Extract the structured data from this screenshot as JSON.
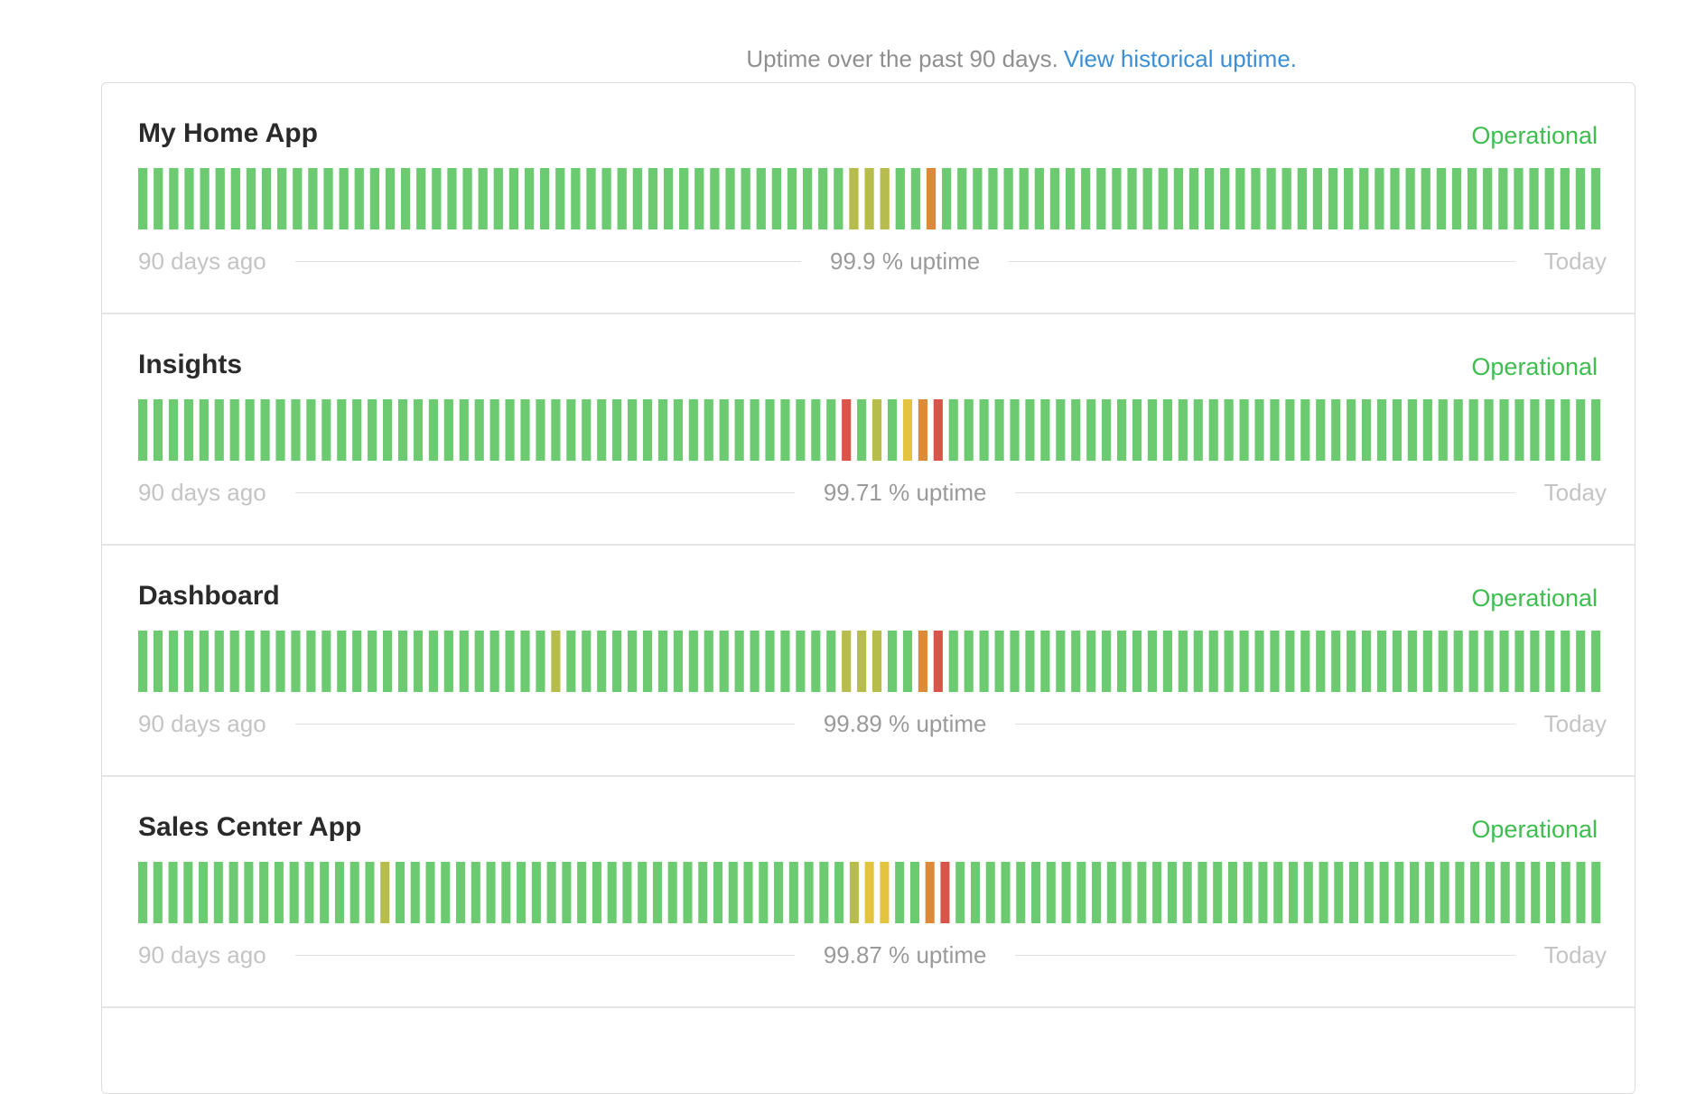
{
  "header": {
    "note": "Uptime over the past 90 days.",
    "link": "View historical uptime."
  },
  "colors": {
    "g": "#6ccb70",
    "y": "#b7bd4c",
    "Y": "#e4c43f",
    "o": "#dc8a3a",
    "r": "#d9554a"
  },
  "components": [
    {
      "name": "My Home App",
      "status": "Operational",
      "left_label": "90 days ago",
      "uptime": "99.9 % uptime",
      "right_label": "Today",
      "days": "ggggggggggggggggggggggggggggggggggggggggggggggyyyggoggggggggggggggggggggggggggggggggggggggggggg"
    },
    {
      "name": "Insights",
      "status": "Operational",
      "left_label": "90 days ago",
      "uptime": "99.71 % uptime",
      "right_label": "Today",
      "days": "ggggggggggggggggggggggggggggggggggggggggggggggrgygYorggggggggggggggggggggggggggggggggggggggggggg"
    },
    {
      "name": "Dashboard",
      "status": "Operational",
      "left_label": "90 days ago",
      "uptime": "99.89 % uptime",
      "right_label": "Today",
      "days": "gggggggggggggggggggggggggggyggggggggggggggggggyyyggorggggggggggggggggggggggggggggggggggggggggggg"
    },
    {
      "name": "Sales Center App",
      "status": "Operational",
      "left_label": "90 days ago",
      "uptime": "99.87 % uptime",
      "right_label": "Today",
      "days": "ggggggggggggggggyggggggggggggggggggggggggggggggyYYggorggggggggggggggggggggggggggggggggggggggggggg"
    }
  ]
}
